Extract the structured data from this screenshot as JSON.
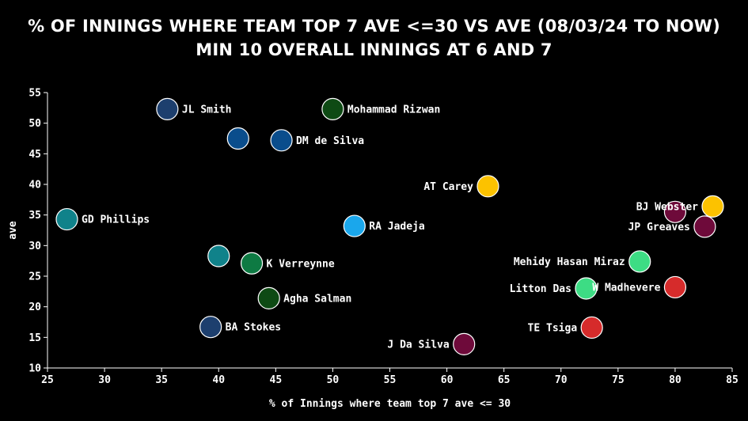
{
  "chart_data": {
    "type": "scatter",
    "title_line1": "% OF INNINGS WHERE TEAM TOP 7 AVE <=30 VS AVE (08/03/24 TO NOW)",
    "title_line2": "MIN 10 OVERALL INNINGS AT 6 AND 7",
    "xlabel": "% of Innings where team top 7 ave <= 30",
    "ylabel": "ave",
    "xlim": [
      25,
      85
    ],
    "ylim": [
      10,
      55
    ],
    "xticks": [
      25,
      30,
      35,
      40,
      45,
      50,
      55,
      60,
      65,
      70,
      75,
      80,
      85
    ],
    "yticks": [
      10,
      15,
      20,
      25,
      30,
      35,
      40,
      45,
      50,
      55
    ],
    "grid": false,
    "points": [
      {
        "label": "JL Smith",
        "x": 35.5,
        "y": 52.3,
        "color": "#1d3f6e",
        "label_side": "right"
      },
      {
        "label": "Mohammad Rizwan",
        "x": 50.0,
        "y": 52.3,
        "color": "#0e4a14",
        "label_side": "right"
      },
      {
        "label": "",
        "x": 41.7,
        "y": 47.5,
        "color": "#0a4d8c",
        "label_side": "right"
      },
      {
        "label": "DM de Silva",
        "x": 45.5,
        "y": 47.2,
        "color": "#0a4d8c",
        "label_side": "right"
      },
      {
        "label": "AT Carey",
        "x": 63.6,
        "y": 39.7,
        "color": "#fcc200",
        "label_side": "left"
      },
      {
        "label": "GD Phillips",
        "x": 26.7,
        "y": 34.3,
        "color": "#10828a",
        "label_side": "right"
      },
      {
        "label": "RA Jadeja",
        "x": 51.9,
        "y": 33.2,
        "color": "#1aa7ec",
        "label_side": "right"
      },
      {
        "label": "BJ Webster",
        "x": 83.3,
        "y": 36.4,
        "color": "#fcc200",
        "label_side": "left"
      },
      {
        "label": "",
        "x": 80.0,
        "y": 35.5,
        "color": "#6e0a3a",
        "label_side": "left"
      },
      {
        "label": "JP Greaves",
        "x": 82.6,
        "y": 33.1,
        "color": "#6e0a3a",
        "label_side": "left"
      },
      {
        "label": "",
        "x": 40.0,
        "y": 28.3,
        "color": "#10828a",
        "label_side": "right"
      },
      {
        "label": "K Verreynne",
        "x": 42.9,
        "y": 27.1,
        "color": "#0e7a43",
        "label_side": "right"
      },
      {
        "label": "Mehidy Hasan Miraz",
        "x": 76.9,
        "y": 27.4,
        "color": "#3ddc84",
        "label_side": "left"
      },
      {
        "label": "Litton Das",
        "x": 72.2,
        "y": 23.0,
        "color": "#3ddc84",
        "label_side": "left"
      },
      {
        "label": "W Madhevere",
        "x": 80.0,
        "y": 23.2,
        "color": "#d62b2b",
        "label_side": "left"
      },
      {
        "label": "Agha Salman",
        "x": 44.4,
        "y": 21.4,
        "color": "#0e4a14",
        "label_side": "right"
      },
      {
        "label": "BA Stokes",
        "x": 39.3,
        "y": 16.7,
        "color": "#1d3f6e",
        "label_side": "right"
      },
      {
        "label": "TE Tsiga",
        "x": 72.7,
        "y": 16.6,
        "color": "#d62b2b",
        "label_side": "left"
      },
      {
        "label": "J Da Silva",
        "x": 61.5,
        "y": 13.9,
        "color": "#6e0a3a",
        "label_side": "left"
      }
    ]
  }
}
